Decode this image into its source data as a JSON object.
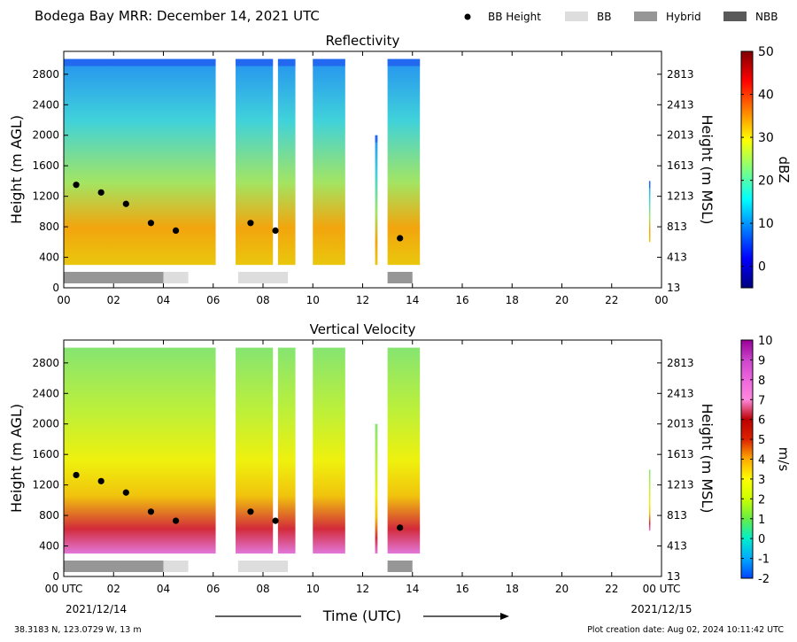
{
  "header": {
    "title": "Bodega Bay MRR:  December 14, 2021 UTC",
    "legend": [
      {
        "label": "BB Height",
        "kind": "dot",
        "color": "#000000"
      },
      {
        "label": "BB",
        "kind": "bar",
        "color": "#dddddd"
      },
      {
        "label": "Hybrid",
        "kind": "bar",
        "color": "#969696"
      },
      {
        "label": "NBB",
        "kind": "bar",
        "color": "#595959"
      }
    ]
  },
  "footer": {
    "coords": "38.3183 N, 123.0729 W, 13 m",
    "created": "Plot creation date: Aug 02, 2024 10:11:42 UTC",
    "xlabel": "Time (UTC)",
    "start_label": "00 UTC",
    "start_date": "2021/12/14",
    "end_label": "00 UTC",
    "end_date": "2021/12/15"
  },
  "chart_data": [
    {
      "type": "heatmap",
      "title": "Reflectivity",
      "ylabel": "Height (m AGL)",
      "ylabel_right": "Height (m MSL)",
      "xlim": [
        0,
        24
      ],
      "ylim": [
        0,
        3100
      ],
      "x_ticks": [
        "00",
        "02",
        "04",
        "06",
        "08",
        "10",
        "12",
        "14",
        "16",
        "18",
        "20",
        "22",
        "00"
      ],
      "y_ticks": [
        0,
        400,
        800,
        1200,
        1600,
        2000,
        2400,
        2800
      ],
      "y_ticks_right": [
        13,
        413,
        813,
        1213,
        1613,
        2013,
        2413,
        2813
      ],
      "colorbar": {
        "label": "dBZ",
        "range": [
          -5,
          50
        ],
        "ticks": [
          0,
          10,
          20,
          30,
          40,
          50
        ],
        "colors": [
          "#00007f",
          "#0000ff",
          "#007fff",
          "#00ffff",
          "#7fff7f",
          "#ffff00",
          "#ff7f00",
          "#ff0000",
          "#7f0000"
        ]
      },
      "bb_height": {
        "x": [
          0.5,
          1.5,
          2.5,
          3.5,
          4.5,
          7.5,
          8.5,
          13.5
        ],
        "y": [
          1350,
          1250,
          1100,
          850,
          750,
          850,
          750,
          650
        ]
      },
      "bb_type": [
        {
          "start": 0,
          "end": 4,
          "type": "Hybrid"
        },
        {
          "start": 4,
          "end": 5,
          "type": "BB"
        },
        {
          "start": 7,
          "end": 9,
          "type": "BB"
        },
        {
          "start": 13,
          "end": 14,
          "type": "Hybrid"
        }
      ],
      "echo_segments": [
        {
          "start": 0,
          "end": 6.1,
          "top": 3000
        },
        {
          "start": 6.9,
          "end": 8.4,
          "top": 3000
        },
        {
          "start": 8.6,
          "end": 9.3,
          "top": 3000
        },
        {
          "start": 10.0,
          "end": 11.3,
          "top": 3000
        },
        {
          "start": 12.5,
          "end": 12.6,
          "top": 2000
        },
        {
          "start": 13.0,
          "end": 14.3,
          "top": 3000
        },
        {
          "start": 23.5,
          "end": 23.55,
          "top": 1400,
          "bottom": 600
        }
      ]
    },
    {
      "type": "heatmap",
      "title": "Vertical Velocity",
      "ylabel": "Height (m AGL)",
      "ylabel_right": "Height (m MSL)",
      "xlim": [
        0,
        24
      ],
      "ylim": [
        0,
        3100
      ],
      "x_ticks": [
        "00 UTC",
        "02",
        "04",
        "06",
        "08",
        "10",
        "12",
        "14",
        "16",
        "18",
        "20",
        "22",
        "00 UTC"
      ],
      "y_ticks": [
        0,
        400,
        800,
        1200,
        1600,
        2000,
        2400,
        2800
      ],
      "y_ticks_right": [
        13,
        413,
        813,
        1213,
        1613,
        2013,
        2413,
        2813
      ],
      "colorbar": {
        "label": "m/s",
        "range": [
          -2,
          10
        ],
        "ticks": [
          -2,
          -1,
          0,
          1,
          2,
          3,
          4,
          5,
          6,
          7,
          8,
          9,
          10
        ],
        "colors": [
          "#0044ff",
          "#00aaff",
          "#00eecc",
          "#66ee44",
          "#ccff00",
          "#ffff00",
          "#ffaa00",
          "#dd2200",
          "#bb0000",
          "#ff88dd",
          "#ee66dd",
          "#cc44cc",
          "#990099"
        ]
      },
      "bb_height": {
        "x": [
          0.5,
          1.5,
          2.5,
          3.5,
          4.5,
          7.5,
          8.5,
          13.5
        ],
        "y": [
          1330,
          1250,
          1100,
          850,
          730,
          850,
          730,
          640
        ]
      },
      "bb_type": [
        {
          "start": 0,
          "end": 4,
          "type": "Hybrid"
        },
        {
          "start": 4,
          "end": 5,
          "type": "BB"
        },
        {
          "start": 7,
          "end": 9,
          "type": "BB"
        },
        {
          "start": 13,
          "end": 14,
          "type": "Hybrid"
        }
      ],
      "echo_segments": [
        {
          "start": 0,
          "end": 6.1,
          "top": 3000
        },
        {
          "start": 6.9,
          "end": 8.4,
          "top": 3000
        },
        {
          "start": 8.6,
          "end": 9.3,
          "top": 3000
        },
        {
          "start": 10.0,
          "end": 11.3,
          "top": 3000
        },
        {
          "start": 12.5,
          "end": 12.6,
          "top": 2000
        },
        {
          "start": 13.0,
          "end": 14.3,
          "top": 3000
        },
        {
          "start": 23.5,
          "end": 23.55,
          "top": 1400,
          "bottom": 600
        }
      ]
    }
  ]
}
